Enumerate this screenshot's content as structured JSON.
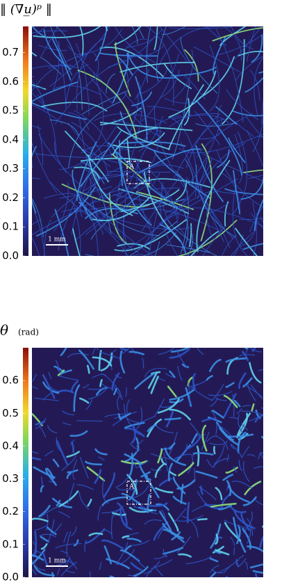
{
  "panels": [
    {
      "colorbar_title": "‖ (∇u̲)ᵖ ‖",
      "colorbar_unit": null,
      "lim": [
        0,
        0.79
      ],
      "ticks": [
        {
          "value": 0,
          "label": "0.0"
        },
        {
          "value": 0.1,
          "label": "0.1"
        },
        {
          "value": 0.2,
          "label": "0.2"
        },
        {
          "value": 0.3,
          "label": "0.3"
        },
        {
          "value": 0.4,
          "label": "0.4"
        },
        {
          "value": 0.5,
          "label": "0.5"
        },
        {
          "value": 0.6,
          "label": "0.6"
        },
        {
          "value": 0.7,
          "label": "0.7"
        }
      ],
      "scale_label": "1 mm",
      "box_label": "A"
    },
    {
      "colorbar_title": "θ",
      "colorbar_unit": "(rad)",
      "lim": [
        0,
        0.7
      ],
      "ticks": [
        {
          "value": 0,
          "label": "0.0"
        },
        {
          "value": 0.1,
          "label": "0.1"
        },
        {
          "value": 0.2,
          "label": "0.2"
        },
        {
          "value": 0.3,
          "label": "0.3"
        },
        {
          "value": 0.4,
          "label": "0.4"
        },
        {
          "value": 0.5,
          "label": "0.5"
        },
        {
          "value": 0.6,
          "label": "0.6"
        }
      ],
      "scale_label": "1 mm",
      "box_label": "A"
    }
  ]
}
